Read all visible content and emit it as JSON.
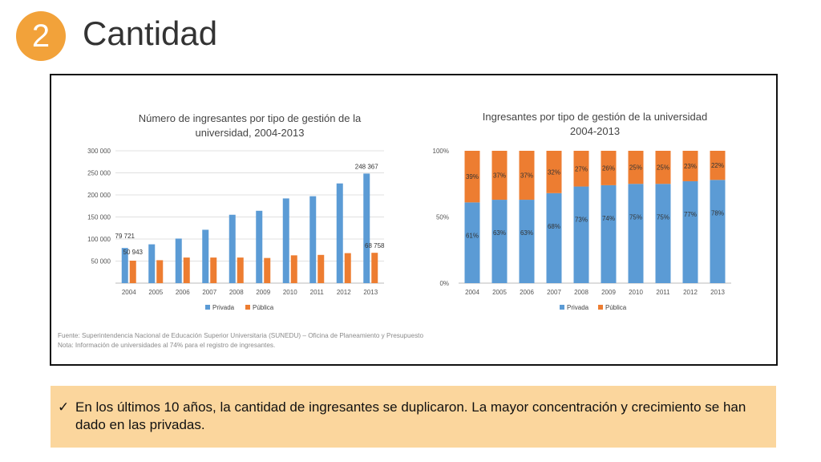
{
  "header": {
    "number": "2",
    "title": "Cantidad"
  },
  "colors": {
    "privada": "#5b9bd5",
    "publica": "#ed7d31",
    "badge": "#f2a23a",
    "callout": "#fbd69d"
  },
  "chart_data": [
    {
      "type": "bar",
      "title_lines": [
        "Número de ingresantes por tipo de gestión de la",
        "universidad, 2004-2013"
      ],
      "categories": [
        "2004",
        "2005",
        "2006",
        "2007",
        "2008",
        "2009",
        "2010",
        "2011",
        "2012",
        "2013"
      ],
      "series": [
        {
          "name": "Privada",
          "values": [
            79721,
            88000,
            101000,
            121000,
            155000,
            164000,
            192000,
            197000,
            226000,
            248367
          ]
        },
        {
          "name": "Pública",
          "values": [
            50943,
            52000,
            58000,
            58000,
            58000,
            57000,
            63000,
            64000,
            68000,
            68758
          ]
        }
      ],
      "data_labels": [
        {
          "series": 0,
          "index": 0,
          "text": "79 721"
        },
        {
          "series": 1,
          "index": 0,
          "text": "50 943"
        },
        {
          "series": 0,
          "index": 9,
          "text": "248 367"
        },
        {
          "series": 1,
          "index": 9,
          "text": "68 758"
        }
      ],
      "y_ticks": [
        50000,
        100000,
        150000,
        200000,
        250000,
        300000
      ],
      "y_tick_labels": [
        "50 000",
        "100 000",
        "150 000",
        "200 000",
        "250 000",
        "300 000"
      ],
      "ylim": [
        0,
        300000
      ],
      "legend": [
        "Privada",
        "Pública"
      ],
      "legend_position": "bottom"
    },
    {
      "type": "bar",
      "stacked": true,
      "title_lines": [
        "Ingresantes por tipo de gestión de la universidad",
        "2004-2013"
      ],
      "categories": [
        "2004",
        "2005",
        "2006",
        "2007",
        "2008",
        "2009",
        "2010",
        "2011",
        "2012",
        "2013"
      ],
      "series": [
        {
          "name": "Privada",
          "values": [
            61,
            63,
            63,
            68,
            73,
            74,
            75,
            75,
            77,
            78
          ],
          "labels": [
            "61%",
            "63%",
            "63%",
            "68%",
            "73%",
            "74%",
            "75%",
            "75%",
            "77%",
            "78%"
          ]
        },
        {
          "name": "Pública",
          "values": [
            39,
            37,
            37,
            32,
            27,
            26,
            25,
            25,
            23,
            22
          ],
          "labels": [
            "39%",
            "37%",
            "37%",
            "32%",
            "27%",
            "26%",
            "25%",
            "25%",
            "23%",
            "22%"
          ]
        }
      ],
      "y_ticks": [
        0,
        50,
        100
      ],
      "y_tick_labels": [
        "0%",
        "50%",
        "100%"
      ],
      "ylim": [
        0,
        100
      ],
      "legend": [
        "Privada",
        "Pública"
      ],
      "legend_position": "bottom"
    }
  ],
  "footnotes": {
    "source": "Fuente: Superintendencia Nacional de Educación Superior Universitaria (SUNEDU) – Oficina de Planeamiento y Presupuesto",
    "note": "Nota: Información de universidades al 74% para el registro de ingresantes."
  },
  "callout": {
    "check": "✓",
    "text": "En los últimos 10 años, la cantidad de ingresantes se duplicaron. La mayor concentración y crecimiento se han dado en las privadas."
  }
}
